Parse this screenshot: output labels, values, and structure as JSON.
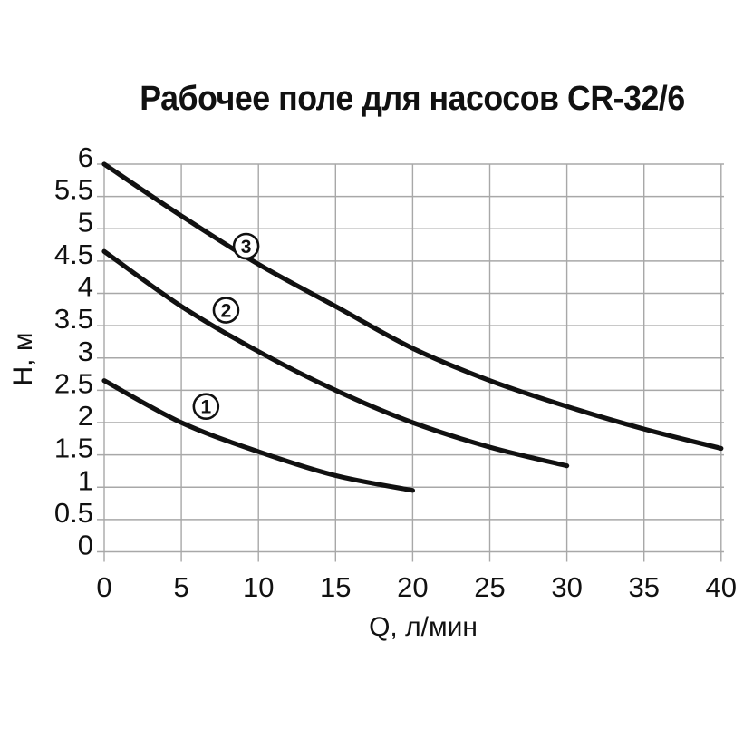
{
  "title": "Рабочее поле для насосов CR-32/6",
  "colors": {
    "curve": "#111111",
    "grid": "#a8a8a8",
    "text": "#111111",
    "background": "#ffffff"
  },
  "chart_data": {
    "type": "line",
    "title": "Рабочее поле для насосов CR-32/6",
    "xlabel": "Q, л/мин",
    "ylabel": "H, м",
    "xlim": [
      0,
      40
    ],
    "ylim": [
      0,
      6
    ],
    "grid": true,
    "legend_position": "none",
    "x_ticks": [
      0,
      5,
      10,
      15,
      20,
      25,
      30,
      35,
      40
    ],
    "y_ticks": [
      0,
      0.5,
      1,
      1.5,
      2,
      2.5,
      3,
      3.5,
      4,
      4.5,
      5,
      5.5,
      6
    ],
    "series": [
      {
        "name": "1",
        "x": [
          0,
          5,
          10,
          15,
          20
        ],
        "y": [
          2.65,
          2.0,
          1.55,
          1.18,
          0.95
        ],
        "label": "1",
        "label_pos": {
          "x": 6.6,
          "y": 2.25
        }
      },
      {
        "name": "2",
        "x": [
          0,
          5,
          10,
          15,
          20,
          25,
          30
        ],
        "y": [
          4.65,
          3.8,
          3.1,
          2.5,
          2.0,
          1.62,
          1.33
        ],
        "label": "2",
        "label_pos": {
          "x": 7.9,
          "y": 3.74
        }
      },
      {
        "name": "3",
        "x": [
          0,
          5,
          10,
          15,
          20,
          25,
          30,
          35,
          40
        ],
        "y": [
          6.0,
          5.2,
          4.45,
          3.8,
          3.15,
          2.65,
          2.25,
          1.9,
          1.6
        ],
        "label": "3",
        "label_pos": {
          "x": 9.2,
          "y": 4.73
        }
      }
    ]
  }
}
